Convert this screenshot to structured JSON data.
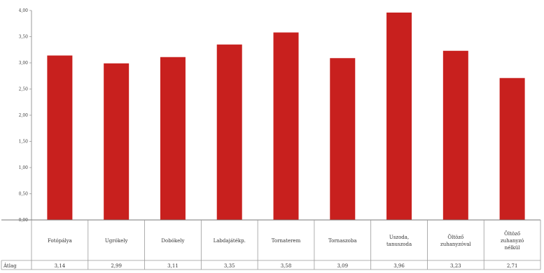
{
  "chart_data": {
    "type": "bar",
    "title": "",
    "xlabel": "",
    "ylabel": "",
    "ylim": [
      0,
      4
    ],
    "yticks": [
      "0,00",
      "0,50",
      "1,00",
      "1,50",
      "2,00",
      "2,50",
      "3,00",
      "3,50",
      "4,00"
    ],
    "grid": false,
    "legend": "none",
    "bar_color": "#c8201e",
    "categories": [
      [
        "Fotópálya"
      ],
      [
        "Ugrókely"
      ],
      [
        "Dobókely"
      ],
      [
        "Labdajátékp."
      ],
      [
        "Tornaterem"
      ],
      [
        "Tornaszoba"
      ],
      [
        "Uszoda,",
        "tanuszoda"
      ],
      [
        "Öltöző",
        "zuhanyzóval"
      ],
      [
        "Öltöző",
        "zuhanyzó",
        "nélkül"
      ]
    ],
    "values": [
      3.14,
      2.99,
      3.11,
      3.35,
      3.58,
      3.09,
      3.96,
      3.23,
      2.71
    ],
    "table": {
      "row_label": "Átlag",
      "value_labels": [
        "3,14",
        "2,99",
        "3,11",
        "3,35",
        "3,58",
        "3,09",
        "3,96",
        "3,23",
        "2,71"
      ]
    }
  }
}
